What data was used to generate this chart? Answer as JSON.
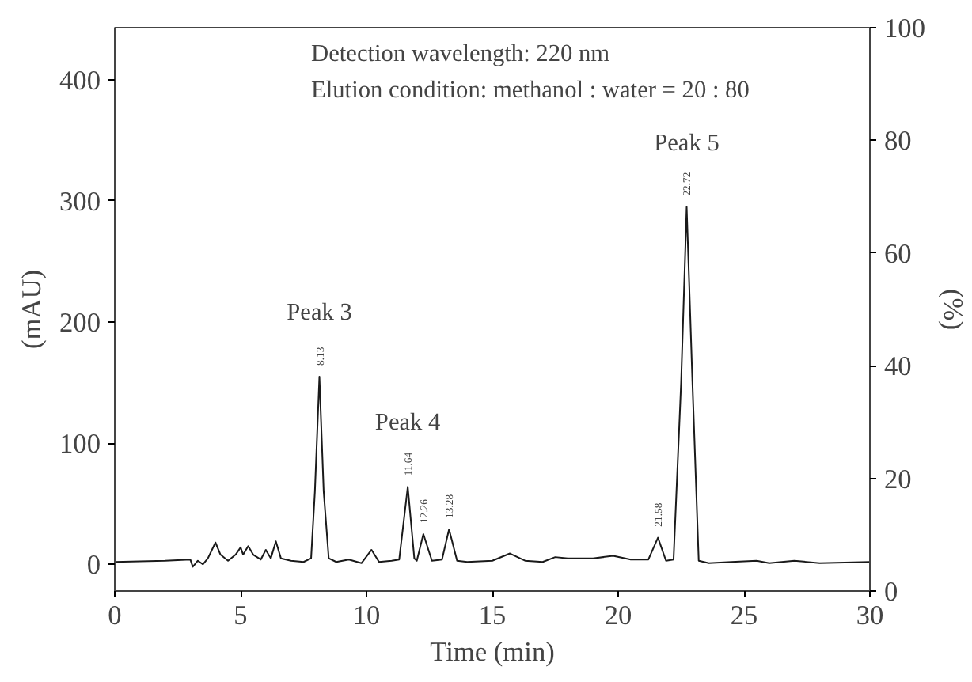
{
  "chart_data": {
    "type": "line",
    "xlabel": "Time (min)",
    "ylabel": "(mAU)",
    "y2label": "(%)",
    "xlim": [
      0,
      30
    ],
    "xticks": [
      0,
      5,
      10,
      15,
      20,
      25,
      30
    ],
    "ylim": [
      -22,
      443
    ],
    "yticks": [
      0,
      100,
      200,
      300,
      400
    ],
    "y2lim": [
      0,
      100
    ],
    "y2ticks": [
      0,
      20,
      40,
      60,
      80,
      100
    ],
    "grid": false,
    "marker": "none",
    "line_style": "solid",
    "series": [
      {
        "color": "#1a1a1a",
        "x": [
          0,
          2,
          3,
          3.1,
          3.3,
          3.5,
          3.7,
          4.0,
          4.2,
          4.5,
          4.8,
          5.0,
          5.1,
          5.3,
          5.5,
          5.8,
          6.0,
          6.2,
          6.4,
          6.6,
          7.0,
          7.5,
          7.8,
          7.95,
          8.13,
          8.3,
          8.5,
          8.8,
          9.3,
          9.8,
          10.2,
          10.5,
          11.0,
          11.3,
          11.64,
          11.9,
          12.0,
          12.26,
          12.6,
          13.0,
          13.28,
          13.6,
          14.0,
          15.0,
          15.7,
          16.3,
          17,
          17.5,
          18,
          19,
          19.8,
          20.5,
          21.2,
          21.58,
          21.9,
          22.2,
          22.5,
          22.72,
          22.95,
          23.2,
          23.6,
          24.5,
          25.5,
          26,
          27,
          28,
          30
        ],
        "values": [
          2,
          3,
          4,
          -2,
          3,
          0,
          5,
          18,
          8,
          3,
          8,
          14,
          8,
          15,
          8,
          4,
          12,
          5,
          19,
          5,
          3,
          2,
          5,
          60,
          155,
          60,
          5,
          2,
          4,
          1,
          12,
          2,
          3,
          4,
          64,
          5,
          3,
          25,
          3,
          4,
          29,
          3,
          2,
          3,
          9,
          3,
          2,
          6,
          5,
          5,
          7,
          4,
          4,
          22,
          3,
          4,
          150,
          295,
          150,
          3,
          1,
          2,
          3,
          1,
          3,
          1,
          2
        ]
      }
    ],
    "annotations": [
      "Detection wavelength: 220 nm",
      "Elution condition: methanol : water = 20 : 80",
      {
        "text": "Peak 3",
        "x": 8.13,
        "y": 155
      },
      {
        "text": "Peak 4",
        "x": 11.64,
        "y": 64
      },
      {
        "text": "Peak 5",
        "x": 22.72,
        "y": 295
      },
      {
        "text": "8.13",
        "x": 8.13,
        "y": 155
      },
      {
        "text": "11.64",
        "x": 11.64,
        "y": 64
      },
      {
        "text": "12.26",
        "x": 12.26,
        "y": 25
      },
      {
        "text": "13.28",
        "x": 13.28,
        "y": 29
      },
      {
        "text": "21.58",
        "x": 21.58,
        "y": 22
      },
      {
        "text": "22.72",
        "x": 22.72,
        "y": 295
      }
    ]
  }
}
